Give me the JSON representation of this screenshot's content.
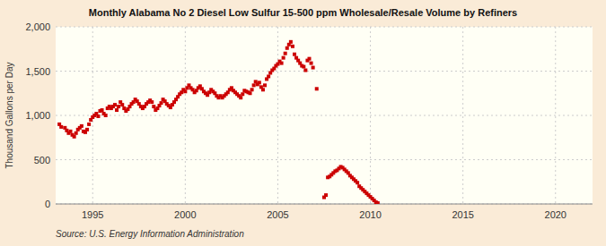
{
  "chart_data": {
    "type": "scatter",
    "title": "Monthly Alabama No 2 Diesel Low Sulfur 15-500 ppm Wholesale/Resale Volume by Refiners",
    "ylabel": "Thousand Gallons per Day",
    "source": "Source: U.S. Energy Information Administration",
    "color": "#cc0000",
    "marker": "square",
    "grid": true,
    "xlim": [
      1993.0,
      2022.0
    ],
    "ylim": [
      0,
      2000
    ],
    "xticks": [
      1995,
      2000,
      2005,
      2010,
      2015,
      2020
    ],
    "yticks": [
      0,
      500,
      {
        "value": 1000,
        "label": "1,000"
      },
      {
        "value": 1500,
        "label": "1,500"
      },
      {
        "value": 2000,
        "label": "2,000"
      }
    ],
    "x": [
      1993.2,
      1993.3,
      1993.5,
      1993.6,
      1993.7,
      1993.8,
      1993.9,
      1994.0,
      1994.1,
      1994.2,
      1994.3,
      1994.4,
      1994.5,
      1994.6,
      1994.7,
      1994.8,
      1994.9,
      1995.0,
      1995.1,
      1995.2,
      1995.3,
      1995.4,
      1995.5,
      1995.6,
      1995.7,
      1995.8,
      1995.9,
      1996.0,
      1996.1,
      1996.2,
      1996.3,
      1996.4,
      1996.5,
      1996.6,
      1996.7,
      1996.8,
      1996.9,
      1997.0,
      1997.1,
      1997.2,
      1997.3,
      1997.4,
      1997.5,
      1997.6,
      1997.7,
      1997.8,
      1997.9,
      1998.0,
      1998.1,
      1998.2,
      1998.3,
      1998.4,
      1998.5,
      1998.6,
      1998.7,
      1998.8,
      1998.9,
      1999.0,
      1999.1,
      1999.2,
      1999.3,
      1999.4,
      1999.5,
      1999.6,
      1999.7,
      1999.8,
      1999.9,
      2000.0,
      2000.1,
      2000.2,
      2000.3,
      2000.4,
      2000.5,
      2000.6,
      2000.7,
      2000.8,
      2000.9,
      2001.0,
      2001.1,
      2001.2,
      2001.3,
      2001.4,
      2001.5,
      2001.6,
      2001.7,
      2001.8,
      2001.9,
      2002.0,
      2002.1,
      2002.2,
      2002.3,
      2002.4,
      2002.5,
      2002.6,
      2002.7,
      2002.8,
      2002.9,
      2003.0,
      2003.1,
      2003.2,
      2003.3,
      2003.4,
      2003.5,
      2003.6,
      2003.7,
      2003.8,
      2003.9,
      2004.0,
      2004.1,
      2004.2,
      2004.3,
      2004.4,
      2004.5,
      2004.6,
      2004.7,
      2004.8,
      2004.9,
      2005.0,
      2005.1,
      2005.2,
      2005.3,
      2005.4,
      2005.5,
      2005.6,
      2005.7,
      2005.8,
      2005.9,
      2006.0,
      2006.1,
      2006.2,
      2006.3,
      2006.4,
      2006.5,
      2006.6,
      2006.7,
      2006.8,
      2006.9,
      2007.1,
      2007.5,
      2007.6,
      2007.7,
      2007.8,
      2007.9,
      2008.0,
      2008.1,
      2008.2,
      2008.3,
      2008.4,
      2008.5,
      2008.6,
      2008.7,
      2008.8,
      2008.9,
      2009.0,
      2009.1,
      2009.2,
      2009.3,
      2009.4,
      2009.5,
      2009.6,
      2009.7,
      2009.8,
      2009.9,
      2010.0,
      2010.1,
      2010.2,
      2010.3,
      2010.4
    ],
    "values": [
      900,
      870,
      860,
      830,
      800,
      820,
      780,
      760,
      800,
      840,
      860,
      880,
      820,
      810,
      840,
      900,
      950,
      980,
      1000,
      1020,
      990,
      1050,
      1060,
      1020,
      1000,
      1080,
      1100,
      1080,
      1100,
      1120,
      1060,
      1100,
      1150,
      1120,
      1080,
      1050,
      1070,
      1100,
      1130,
      1150,
      1180,
      1160,
      1130,
      1100,
      1080,
      1100,
      1130,
      1150,
      1170,
      1150,
      1100,
      1060,
      1080,
      1110,
      1140,
      1180,
      1160,
      1130,
      1110,
      1090,
      1120,
      1150,
      1180,
      1210,
      1240,
      1260,
      1290,
      1270,
      1310,
      1340,
      1310,
      1290,
      1260,
      1280,
      1310,
      1330,
      1300,
      1270,
      1250,
      1230,
      1260,
      1290,
      1270,
      1250,
      1220,
      1200,
      1220,
      1200,
      1220,
      1240,
      1260,
      1290,
      1310,
      1280,
      1260,
      1240,
      1220,
      1200,
      1240,
      1280,
      1270,
      1260,
      1250,
      1290,
      1340,
      1380,
      1350,
      1370,
      1320,
      1290,
      1340,
      1410,
      1440,
      1480,
      1510,
      1530,
      1560,
      1580,
      1610,
      1590,
      1650,
      1700,
      1760,
      1800,
      1830,
      1780,
      1690,
      1650,
      1620,
      1590,
      1560,
      1550,
      1510,
      1620,
      1640,
      1590,
      1540,
      1300,
      75,
      100,
      300,
      310,
      330,
      350,
      370,
      380,
      400,
      420,
      410,
      390,
      370,
      350,
      320,
      300,
      280,
      260,
      240,
      200,
      180,
      160,
      140,
      120,
      100,
      80,
      60,
      40,
      20,
      10
    ]
  }
}
